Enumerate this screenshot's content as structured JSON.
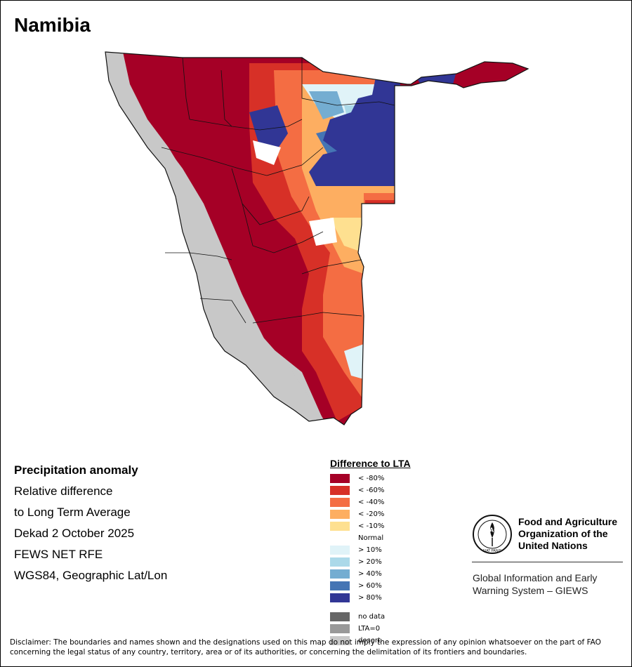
{
  "map": {
    "title": "Namibia",
    "country": "Namibia",
    "base_colors": {
      "sea_and_background": "#ffffff",
      "boundary_line": "#111111"
    }
  },
  "info": {
    "heading": "Precipitation anomaly",
    "line1": "Relative difference",
    "line2": "to Long Term Average",
    "period": "Dekad 2 October 2025",
    "source": "FEWS NET RFE",
    "projection": "WGS84, Geographic Lat/Lon"
  },
  "legend": {
    "title": "Difference to LTA",
    "classes": [
      {
        "label": "< -80%",
        "color": "#a50026"
      },
      {
        "label": "< -60%",
        "color": "#d73027"
      },
      {
        "label": "< -40%",
        "color": "#f46d43"
      },
      {
        "label": "< -20%",
        "color": "#fdae61"
      },
      {
        "label": "< -10%",
        "color": "#fee090"
      },
      {
        "label": "Normal",
        "color": "#ffffff"
      },
      {
        "label": "> 10%",
        "color": "#e0f3f8"
      },
      {
        "label": "> 20%",
        "color": "#abd9e9"
      },
      {
        "label": "> 40%",
        "color": "#74add1"
      },
      {
        "label": "> 60%",
        "color": "#4575b4"
      },
      {
        "label": "> 80%",
        "color": "#313695"
      }
    ],
    "special": [
      {
        "label": "no data",
        "color": "#666666"
      },
      {
        "label": "LTA=0",
        "color": "#999999"
      },
      {
        "label": "desert",
        "color": "#c8c8c8"
      }
    ]
  },
  "organization": {
    "name_line1": "Food and Agriculture",
    "name_line2": "Organization of the",
    "name_line3": "United Nations",
    "logo_text": "FAO",
    "logo_motto": "FIAT PANIS",
    "system_line1": "Global Information and Early",
    "system_line2": "Warning System – GIEWS"
  },
  "disclaimer": {
    "line1": "Disclaimer: The boundaries and names shown and the designations used on this map do not imply the expression of any opinion whatsoever on the part of FAO",
    "line2": "concerning the legal status of any country, territory, area or of its authorities, or concerning the delimitation of its frontiers and boundaries."
  }
}
